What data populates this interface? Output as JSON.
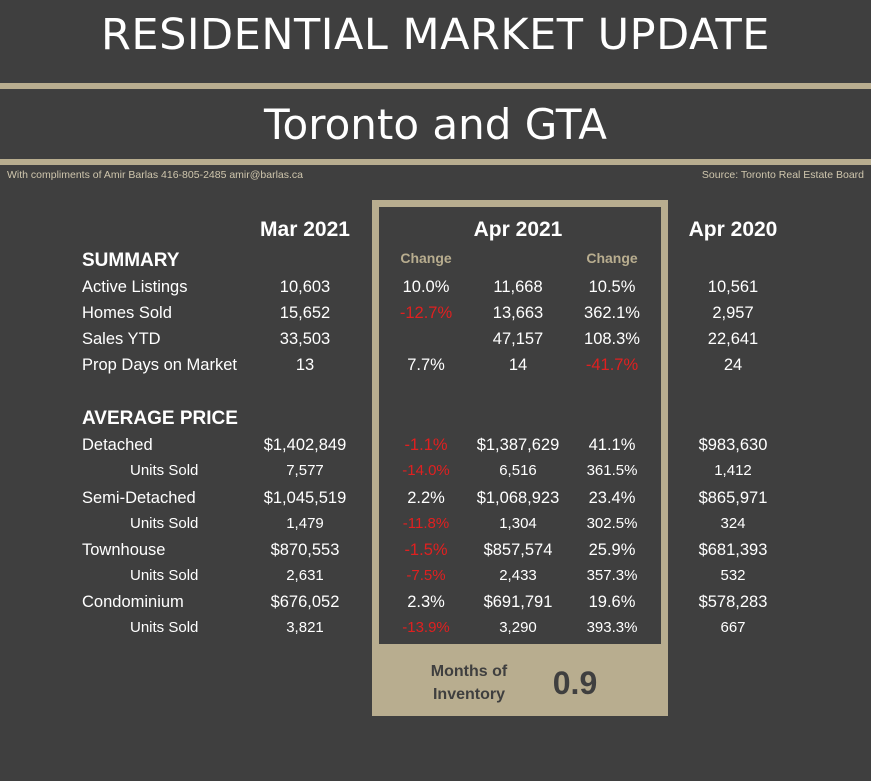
{
  "header": {
    "title": "RESIDENTIAL MARKET UPDATE",
    "subtitle": "Toronto and GTA",
    "credit": "With compliments of Amir Barlas 416-805-2485 amir@barlas.ca",
    "source": "Source: Toronto Real Estate Board"
  },
  "columns": {
    "mar2021": "Mar 2021",
    "apr2021": "Apr 2021",
    "apr2020": "Apr 2020",
    "change1": "Change",
    "change2": "Change"
  },
  "colors": {
    "accent": "#b8ad8f",
    "background": "#3f3f3f",
    "negative": "#e02020"
  },
  "summary": {
    "heading": "SUMMARY",
    "rows": [
      {
        "label": "Active Listings",
        "mar": "10,603",
        "chg1": "10.0%",
        "apr": "11,668",
        "chg2": "10.5%",
        "apr20": "10,561"
      },
      {
        "label": "Homes Sold",
        "mar": "15,652",
        "chg1": "-12.7%",
        "apr": "13,663",
        "chg2": "362.1%",
        "apr20": "2,957"
      },
      {
        "label": "Sales YTD",
        "mar": "33,503",
        "chg1": "",
        "apr": "47,157",
        "chg2": "108.3%",
        "apr20": "22,641"
      },
      {
        "label": "Prop Days on Market",
        "mar": "13",
        "chg1": "7.7%",
        "apr": "14",
        "chg2": "-41.7%",
        "apr20": "24"
      }
    ]
  },
  "average_price": {
    "heading": "AVERAGE PRICE",
    "rows": [
      {
        "label": "Detached",
        "mar": "$1,402,849",
        "chg1": "-1.1%",
        "apr": "$1,387,629",
        "chg2": "41.1%",
        "apr20": "$983,630"
      },
      {
        "label": "Units Sold",
        "mar": "7,577",
        "chg1": "-14.0%",
        "apr": "6,516",
        "chg2": "361.5%",
        "apr20": "1,412"
      },
      {
        "label": "Semi-Detached",
        "mar": "$1,045,519",
        "chg1": "2.2%",
        "apr": "$1,068,923",
        "chg2": "23.4%",
        "apr20": "$865,971"
      },
      {
        "label": "Units Sold",
        "mar": "1,479",
        "chg1": "-11.8%",
        "apr": "1,304",
        "chg2": "302.5%",
        "apr20": "324"
      },
      {
        "label": "Townhouse",
        "mar": "$870,553",
        "chg1": "-1.5%",
        "apr": "$857,574",
        "chg2": "25.9%",
        "apr20": "$681,393"
      },
      {
        "label": "Units Sold",
        "mar": "2,631",
        "chg1": "-7.5%",
        "apr": "2,433",
        "chg2": "357.3%",
        "apr20": "532"
      },
      {
        "label": "Condominium",
        "mar": "$676,052",
        "chg1": "2.3%",
        "apr": "$691,791",
        "chg2": "19.6%",
        "apr20": "$578,283"
      },
      {
        "label": "Units Sold",
        "mar": "3,821",
        "chg1": "-13.9%",
        "apr": "3,290",
        "chg2": "393.3%",
        "apr20": "667"
      }
    ]
  },
  "inventory": {
    "label_line1": "Months of",
    "label_line2": "Inventory",
    "value": "0.9"
  }
}
